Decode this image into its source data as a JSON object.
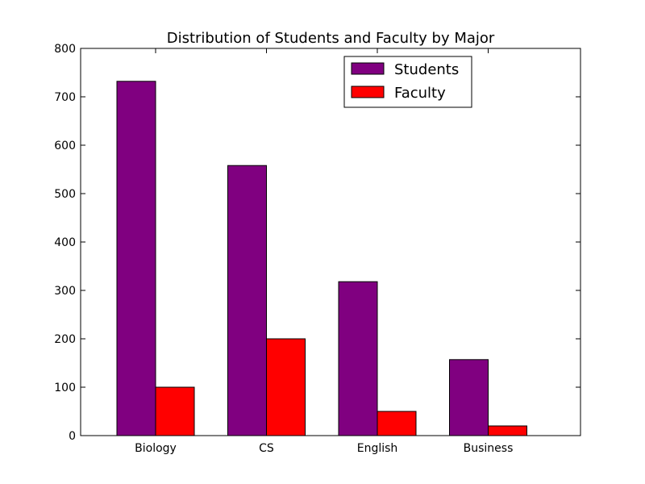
{
  "chart_data": {
    "type": "bar",
    "title": "Distribution of Students and Faculty by Major",
    "xlabel": "",
    "ylabel": "",
    "categories": [
      "Biology",
      "CS",
      "English",
      "Business"
    ],
    "series": [
      {
        "name": "Students",
        "color": "#800080",
        "values": [
          732,
          558,
          318,
          157
        ]
      },
      {
        "name": "Faculty",
        "color": "#ff0000",
        "values": [
          100,
          200,
          50,
          20
        ]
      }
    ],
    "ylim": [
      0,
      800
    ],
    "yticks": [
      0,
      100,
      200,
      300,
      400,
      500,
      600,
      700,
      800
    ],
    "grid": false,
    "legend": "top-center-right"
  }
}
